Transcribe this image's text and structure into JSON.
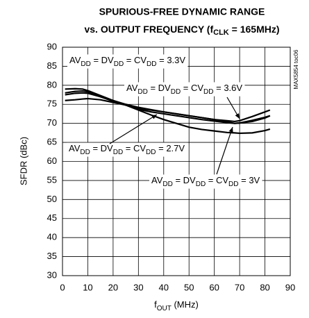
{
  "chart_data": {
    "type": "line",
    "title": [
      "SPURIOUS-FREE DYNAMIC RANGE",
      [
        "vs. OUTPUT FREQUENCY (f",
        "CLK",
        " = 165MHz)"
      ]
    ],
    "x_label": [
      "f",
      "OUT",
      " (MHz)"
    ],
    "y_label": "SFDR (dBc)",
    "side_note": "MAX5854 toc06",
    "x": [
      1,
      5,
      8,
      10,
      15,
      20,
      25,
      30,
      35,
      40,
      45,
      50,
      55,
      60,
      65,
      68,
      70,
      75,
      80,
      82
    ],
    "series": [
      {
        "color": "#000000",
        "values": [
          78,
          78.4,
          78.5,
          78.3,
          77,
          75.8,
          74.8,
          73.7,
          73,
          72.5,
          72,
          71.5,
          71,
          70.6,
          70.2,
          70,
          70.1,
          70.8,
          71.6,
          72
        ]
      },
      {
        "color": "#000000",
        "values": [
          77.5,
          77.9,
          78,
          77.9,
          77,
          76,
          75,
          74.2,
          73.6,
          73,
          72.5,
          72,
          71.5,
          71,
          70.7,
          70.5,
          70.7,
          71.8,
          73,
          73.5
        ]
      },
      {
        "color": "#000000",
        "values": [
          79,
          79.1,
          79,
          78.6,
          77.3,
          76,
          74.8,
          73.5,
          72.2,
          71,
          70,
          69,
          68.4,
          68,
          67.6,
          67.5,
          67.4,
          67.5,
          68.1,
          68.5
        ]
      },
      {
        "color": "#000000",
        "values": [
          76,
          76.2,
          76.4,
          76.5,
          76.2,
          75.5,
          74.8,
          74,
          73.5,
          73,
          72.5,
          72,
          71.5,
          71,
          70.4,
          70,
          70.1,
          70.5,
          71.4,
          72
        ]
      }
    ],
    "annotations": [
      [
        "AV",
        "DD",
        " = DV",
        "DD",
        " = CV",
        "DD",
        " = 3.3V"
      ],
      [
        "AV",
        "DD",
        " = DV",
        "DD",
        " = CV",
        "DD",
        " = 3.6V"
      ],
      [
        "AV",
        "DD",
        " = DV",
        "DD",
        " = CV",
        "DD",
        " = 2.7V"
      ],
      [
        "AV",
        "DD",
        " = DV",
        "DD",
        " = CV",
        "DD",
        " = 3V"
      ]
    ],
    "xlim": [
      0,
      90
    ],
    "xticks": [
      0,
      10,
      20,
      30,
      40,
      50,
      60,
      70,
      80,
      90
    ],
    "ylim": [
      30,
      90
    ],
    "yticks": [
      30,
      35,
      40,
      45,
      50,
      55,
      60,
      65,
      70,
      75,
      80,
      85,
      90
    ],
    "grid": true
  }
}
